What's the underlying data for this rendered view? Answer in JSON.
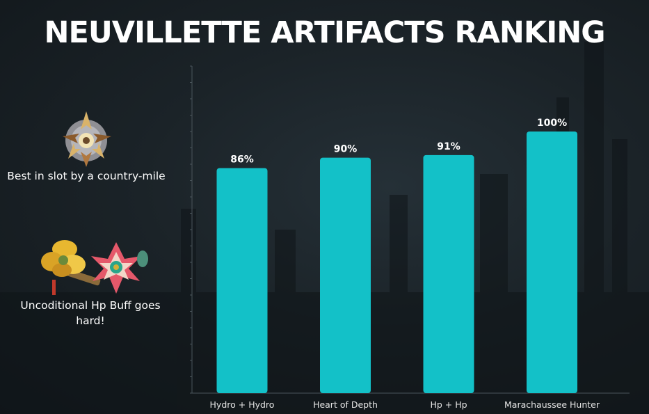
{
  "title": "NEUVILLETTE ARTIFACTS RANKING",
  "sidebar": {
    "items": [
      {
        "caption": "Best in slot by a country-mile",
        "icon": "marechaussee-flower-icon"
      },
      {
        "caption": "Uncoditional Hp Buff goes hard!",
        "icon": "hp-flower-set-icon"
      }
    ]
  },
  "colors": {
    "bar": "#13c1c8",
    "axis": "#4a555b",
    "background": "#1b2328"
  },
  "chart_data": {
    "type": "bar",
    "title": "NEUVILLETTE ARTIFACTS RANKING",
    "categories": [
      "Hydro + Hydro",
      "Heart of Depth",
      "Hp + Hp",
      "Marachaussee Hunter"
    ],
    "values": [
      86,
      90,
      91,
      100
    ],
    "data_labels": [
      "86%",
      "90%",
      "91%",
      "100%"
    ],
    "xlabel": "",
    "ylabel": "",
    "ylim": [
      0,
      125
    ],
    "grid": false,
    "legend": "none"
  }
}
